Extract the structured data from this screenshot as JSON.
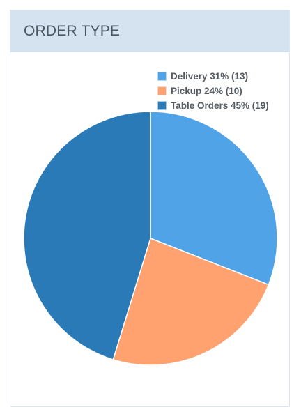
{
  "panel": {
    "title": "ORDER TYPE"
  },
  "chart_data": {
    "type": "pie",
    "title": "ORDER TYPE",
    "legend_position": "top-right",
    "slices": [
      {
        "label": "Delivery",
        "percent": 31,
        "count": 13,
        "color": "#4fa3e6",
        "legend": "Delivery 31% (13)"
      },
      {
        "label": "Pickup",
        "percent": 24,
        "count": 10,
        "color": "#ffa270",
        "legend": "Pickup 24% (10)"
      },
      {
        "label": "Table Orders",
        "percent": 45,
        "count": 19,
        "color": "#2a7ab8",
        "legend": "Table Orders 45% (19)"
      }
    ]
  }
}
